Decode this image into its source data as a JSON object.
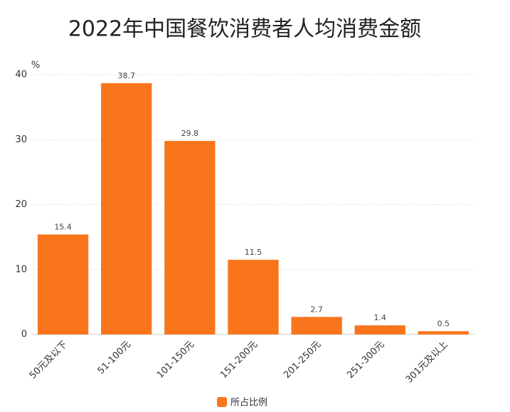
{
  "chart_data": {
    "type": "bar",
    "title": "2022年中国餐饮消费者人均消费金额",
    "y_label": "%",
    "categories": [
      "50元及以下",
      "51-100元",
      "101-150元",
      "151-200元",
      "201-250元",
      "251-300元",
      "301元及以上"
    ],
    "series": [
      {
        "name": "所占比例",
        "color": "#f8751c",
        "values": [
          15.4,
          38.7,
          29.8,
          11.5,
          2.7,
          1.4,
          0.5
        ]
      }
    ],
    "ylim": [
      0,
      40
    ],
    "yticks": [
      0,
      10,
      20,
      30,
      40
    ],
    "grid": true
  }
}
